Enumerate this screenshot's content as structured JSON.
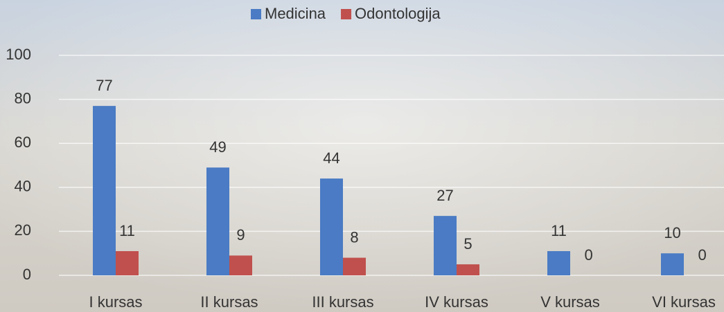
{
  "chart_data": {
    "type": "bar",
    "categories": [
      "I kursas",
      "II kursas",
      "III kursas",
      "IV kursas",
      "V kursas",
      "VI kursas"
    ],
    "series": [
      {
        "name": "Medicina",
        "color": "#4a7bc4",
        "values": [
          77,
          49,
          44,
          27,
          11,
          10
        ]
      },
      {
        "name": "Odontologija",
        "color": "#c0504d",
        "values": [
          11,
          9,
          8,
          5,
          0,
          0
        ]
      }
    ],
    "ylim": [
      0,
      100
    ],
    "yticks": [
      0,
      20,
      40,
      60,
      80,
      100
    ],
    "grid": true,
    "legend": "top"
  }
}
